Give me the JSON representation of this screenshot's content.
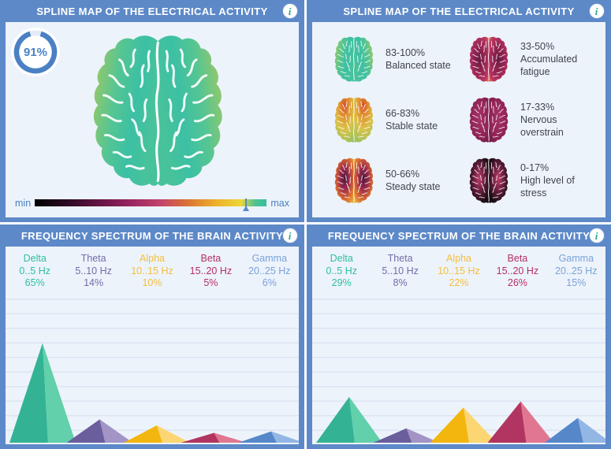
{
  "colors": {
    "chrome": "#5d89c8",
    "panel_bg": "#edf3fb",
    "header_text": "#ffffff",
    "info_icon_glyph": "#2ba88e",
    "grid_line": "#dbe4f3",
    "legend_text": "#3f444d",
    "accent_blue": "#4a7fc3"
  },
  "bands": [
    {
      "name": "Delta",
      "range": "0..5 Hz",
      "color": "#2ebf9f",
      "dark": "#33b394",
      "light": "#62d0ab"
    },
    {
      "name": "Theta",
      "range": "5..10 Hz",
      "color": "#716ea9",
      "dark": "#6a5e9d",
      "light": "#a295c6"
    },
    {
      "name": "Alpha",
      "range": "10..15 Hz",
      "color": "#f5be37",
      "dark": "#f2b60e",
      "light": "#fcd672"
    },
    {
      "name": "Beta",
      "range": "15..20 Hz",
      "color": "#b72f60",
      "dark": "#b23460",
      "light": "#e17691"
    },
    {
      "name": "Gamma",
      "range": "20..25 Hz",
      "color": "#7aa2d8",
      "dark": "#5687c9",
      "light": "#93b7e4"
    }
  ],
  "spline_left": {
    "title": "SPLINE MAP OF THE ELECTRICAL ACTIVITY",
    "gauge": {
      "value": 91,
      "label": "91%"
    },
    "scale": {
      "min_label": "min",
      "max_label": "max",
      "marker_pct": 91
    }
  },
  "spline_right": {
    "title": "SPLINE MAP OF THE ELECTRICAL ACTIVITY",
    "legend": [
      {
        "range": "83-100%",
        "label": "Balanced state",
        "variant": "balanced"
      },
      {
        "range": "66-83%",
        "label": "Stable state",
        "variant": "stable"
      },
      {
        "range": "50-66%",
        "label": "Steady state",
        "variant": "steady"
      },
      {
        "range": "33-50%",
        "label": "Accumulated fatigue",
        "variant": "fatigue"
      },
      {
        "range": "17-33%",
        "label": "Nervous overstrain",
        "variant": "overstrain"
      },
      {
        "range": "0-17%",
        "label": "High level of stress",
        "variant": "stress"
      }
    ]
  },
  "freq_left": {
    "title": "FREQUENCY SPECTRUM OF THE BRAIN ACTIVITY",
    "chart_data": {
      "type": "area",
      "categories": [
        "Delta",
        "Theta",
        "Alpha",
        "Beta",
        "Gamma"
      ],
      "ranges_hz": [
        "0..5 Hz",
        "5..10 Hz",
        "10..15 Hz",
        "15..20 Hz",
        "20..25 Hz"
      ],
      "values": [
        65,
        14,
        10,
        5,
        6
      ],
      "unit": "%",
      "ylim": [
        0,
        100
      ],
      "grid": true,
      "legend_position": "top"
    }
  },
  "freq_right": {
    "title": "FREQUENCY SPECTRUM OF THE BRAIN ACTIVITY",
    "chart_data": {
      "type": "area",
      "categories": [
        "Delta",
        "Theta",
        "Alpha",
        "Beta",
        "Gamma"
      ],
      "ranges_hz": [
        "0..5 Hz",
        "5..10 Hz",
        "10..15 Hz",
        "15..20 Hz",
        "20..25 Hz"
      ],
      "values": [
        29,
        8,
        22,
        26,
        15
      ],
      "unit": "%",
      "ylim": [
        0,
        100
      ],
      "grid": true,
      "legend_position": "top"
    }
  }
}
